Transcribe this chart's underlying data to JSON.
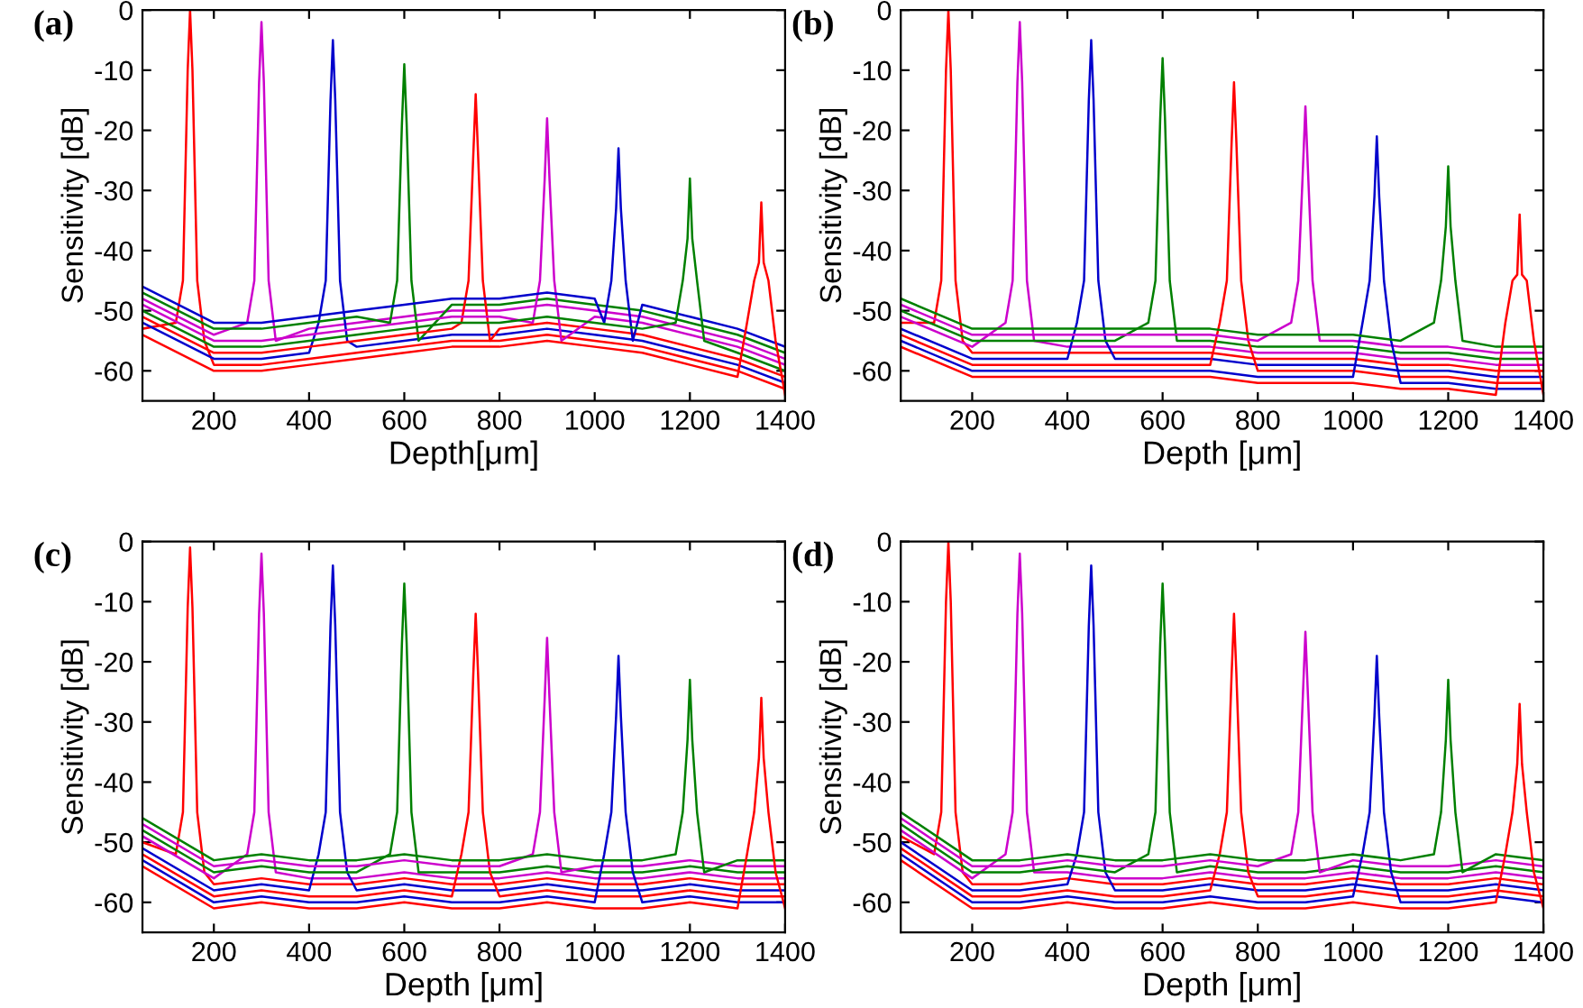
{
  "chart_data": [
    {
      "type": "line",
      "title": "(a)",
      "xlabel": "Depth[μm]",
      "ylabel": "Sensitivity [dB]",
      "xlim": [
        50,
        1400
      ],
      "xticks": [
        200,
        400,
        600,
        800,
        1000,
        1200,
        1400
      ],
      "ylim": [
        -65,
        0
      ],
      "yticks": [
        -60,
        -50,
        -40,
        -30,
        -20,
        -10,
        0
      ],
      "grid": false,
      "line_style": "solid",
      "series": [
        {
          "color": "#ff0000",
          "x": [
            50,
            120,
            135,
            145,
            150,
            155,
            165,
            180,
            200,
            300,
            400,
            500,
            600,
            700,
            800,
            900,
            1000,
            1100,
            1200,
            1300,
            1400
          ],
          "values": [
            -53,
            -52,
            -45,
            -10,
            0,
            -10,
            -45,
            -55,
            -59,
            -59,
            -58,
            -57,
            -56,
            -55,
            -55,
            -54,
            -55,
            -56,
            -58,
            -60,
            -63
          ]
        },
        {
          "color": "#cc00cc",
          "x": [
            50,
            200,
            270,
            285,
            295,
            300,
            305,
            315,
            330,
            400,
            500,
            600,
            700,
            800,
            900,
            1000,
            1100,
            1200,
            1300,
            1400
          ],
          "values": [
            -48,
            -54,
            -52,
            -45,
            -12,
            -2,
            -12,
            -45,
            -55,
            -53,
            -52,
            -51,
            -50,
            -50,
            -49,
            -50,
            -51,
            -53,
            -55,
            -58
          ]
        },
        {
          "color": "#0000cc",
          "x": [
            50,
            200,
            300,
            400,
            420,
            435,
            445,
            450,
            455,
            465,
            480,
            500,
            600,
            700,
            800,
            900,
            1000,
            1100,
            1200,
            1300,
            1400
          ],
          "values": [
            -52,
            -58,
            -58,
            -57,
            -52,
            -45,
            -15,
            -5,
            -15,
            -45,
            -55,
            -56,
            -55,
            -54,
            -54,
            -53,
            -54,
            -55,
            -57,
            -59,
            -62
          ]
        },
        {
          "color": "#008000",
          "x": [
            50,
            200,
            300,
            400,
            500,
            570,
            585,
            595,
            600,
            605,
            615,
            630,
            700,
            800,
            900,
            1000,
            1100,
            1200,
            1300,
            1400
          ],
          "values": [
            -47,
            -53,
            -53,
            -52,
            -51,
            -52,
            -45,
            -19,
            -9,
            -19,
            -45,
            -55,
            -49,
            -49,
            -48,
            -49,
            -50,
            -52,
            -54,
            -57
          ]
        },
        {
          "color": "#ff0000",
          "x": [
            50,
            200,
            300,
            400,
            500,
            600,
            700,
            720,
            735,
            745,
            750,
            755,
            765,
            780,
            800,
            900,
            1000,
            1100,
            1200,
            1300,
            1400
          ],
          "values": [
            -51,
            -57,
            -57,
            -56,
            -55,
            -54,
            -53,
            -52,
            -45,
            -24,
            -14,
            -24,
            -45,
            -55,
            -53,
            -52,
            -53,
            -54,
            -56,
            -58,
            -61
          ]
        },
        {
          "color": "#cc00cc",
          "x": [
            50,
            200,
            300,
            400,
            500,
            600,
            700,
            800,
            870,
            885,
            895,
            900,
            905,
            915,
            930,
            1000,
            1100,
            1200,
            1300,
            1400
          ],
          "values": [
            -49,
            -55,
            -55,
            -54,
            -53,
            -52,
            -51,
            -51,
            -52,
            -45,
            -28,
            -18,
            -28,
            -45,
            -55,
            -51,
            -52,
            -54,
            -56,
            -59
          ]
        },
        {
          "color": "#0000cc",
          "x": [
            50,
            200,
            300,
            400,
            500,
            600,
            700,
            800,
            900,
            1000,
            1020,
            1035,
            1045,
            1050,
            1055,
            1065,
            1080,
            1100,
            1200,
            1300,
            1400
          ],
          "values": [
            -46,
            -52,
            -52,
            -51,
            -50,
            -49,
            -48,
            -48,
            -47,
            -48,
            -52,
            -45,
            -33,
            -23,
            -33,
            -45,
            -55,
            -49,
            -51,
            -53,
            -56
          ]
        },
        {
          "color": "#008000",
          "x": [
            50,
            200,
            300,
            400,
            500,
            600,
            700,
            800,
            900,
            1000,
            1100,
            1170,
            1185,
            1195,
            1200,
            1205,
            1215,
            1230,
            1300,
            1400
          ],
          "values": [
            -50,
            -56,
            -56,
            -55,
            -54,
            -53,
            -52,
            -52,
            -51,
            -52,
            -53,
            -52,
            -45,
            -38,
            -28,
            -38,
            -45,
            -55,
            -57,
            -60
          ]
        },
        {
          "color": "#ff0000",
          "x": [
            50,
            200,
            300,
            400,
            500,
            600,
            700,
            800,
            900,
            1000,
            1100,
            1200,
            1300,
            1320,
            1335,
            1345,
            1350,
            1355,
            1365,
            1380,
            1400
          ],
          "values": [
            -54,
            -60,
            -60,
            -59,
            -58,
            -57,
            -56,
            -56,
            -55,
            -56,
            -57,
            -59,
            -61,
            -52,
            -45,
            -42,
            -32,
            -42,
            -45,
            -55,
            -64
          ]
        }
      ]
    },
    {
      "type": "line",
      "title": "(b)",
      "xlabel": "Depth [μm]",
      "ylabel": "Sensitivity [dB]",
      "xlim": [
        50,
        1400
      ],
      "xticks": [
        200,
        400,
        600,
        800,
        1000,
        1200,
        1400
      ],
      "ylim": [
        -65,
        0
      ],
      "yticks": [
        -60,
        -50,
        -40,
        -30,
        -20,
        -10,
        0
      ],
      "grid": false,
      "line_style": "solid",
      "series": [
        {
          "color": "#ff0000",
          "x": [
            50,
            120,
            135,
            145,
            150,
            155,
            165,
            180,
            200,
            300,
            400,
            500,
            600,
            700,
            800,
            900,
            1000,
            1100,
            1200,
            1300,
            1400
          ],
          "values": [
            -52,
            -52,
            -45,
            -10,
            0,
            -10,
            -45,
            -55,
            -57,
            -57,
            -57,
            -57,
            -57,
            -57,
            -58,
            -58,
            -58,
            -59,
            -59,
            -60,
            -60
          ]
        },
        {
          "color": "#cc00cc",
          "x": [
            50,
            200,
            270,
            285,
            295,
            300,
            305,
            315,
            330,
            400,
            500,
            600,
            700,
            800,
            900,
            1000,
            1100,
            1200,
            1300,
            1400
          ],
          "values": [
            -51,
            -56,
            -52,
            -45,
            -12,
            -2,
            -12,
            -45,
            -55,
            -56,
            -56,
            -56,
            -56,
            -57,
            -57,
            -57,
            -58,
            -58,
            -59,
            -59
          ]
        },
        {
          "color": "#0000cc",
          "x": [
            50,
            200,
            300,
            400,
            420,
            435,
            445,
            450,
            455,
            465,
            480,
            500,
            600,
            700,
            800,
            900,
            1000,
            1100,
            1200,
            1300,
            1400
          ],
          "values": [
            -53,
            -58,
            -58,
            -58,
            -52,
            -45,
            -15,
            -5,
            -15,
            -45,
            -55,
            -58,
            -58,
            -58,
            -59,
            -59,
            -59,
            -60,
            -60,
            -61,
            -61
          ]
        },
        {
          "color": "#008000",
          "x": [
            50,
            200,
            300,
            400,
            500,
            570,
            585,
            595,
            600,
            605,
            615,
            630,
            700,
            800,
            900,
            1000,
            1100,
            1200,
            1300,
            1400
          ],
          "values": [
            -50,
            -55,
            -55,
            -55,
            -55,
            -52,
            -45,
            -18,
            -8,
            -18,
            -45,
            -55,
            -55,
            -56,
            -56,
            -56,
            -57,
            -57,
            -58,
            -58
          ]
        },
        {
          "color": "#ff0000",
          "x": [
            50,
            200,
            300,
            400,
            500,
            600,
            700,
            720,
            735,
            745,
            750,
            755,
            765,
            780,
            800,
            900,
            1000,
            1100,
            1200,
            1300,
            1400
          ],
          "values": [
            -54,
            -59,
            -59,
            -59,
            -59,
            -59,
            -59,
            -52,
            -45,
            -22,
            -12,
            -22,
            -45,
            -55,
            -60,
            -60,
            -60,
            -61,
            -61,
            -62,
            -62
          ]
        },
        {
          "color": "#cc00cc",
          "x": [
            50,
            200,
            300,
            400,
            500,
            600,
            700,
            800,
            870,
            885,
            895,
            900,
            905,
            915,
            930,
            1000,
            1100,
            1200,
            1300,
            1400
          ],
          "values": [
            -49,
            -54,
            -54,
            -54,
            -54,
            -54,
            -54,
            -55,
            -52,
            -45,
            -26,
            -16,
            -26,
            -45,
            -55,
            -55,
            -56,
            -56,
            -57,
            -57
          ]
        },
        {
          "color": "#0000cc",
          "x": [
            50,
            200,
            300,
            400,
            500,
            600,
            700,
            800,
            900,
            1000,
            1020,
            1035,
            1045,
            1050,
            1055,
            1065,
            1080,
            1100,
            1200,
            1300,
            1400
          ],
          "values": [
            -55,
            -60,
            -60,
            -60,
            -60,
            -60,
            -60,
            -61,
            -61,
            -61,
            -52,
            -45,
            -31,
            -21,
            -31,
            -45,
            -55,
            -62,
            -62,
            -63,
            -63
          ]
        },
        {
          "color": "#008000",
          "x": [
            50,
            200,
            300,
            400,
            500,
            600,
            700,
            800,
            900,
            1000,
            1100,
            1170,
            1185,
            1195,
            1200,
            1205,
            1215,
            1230,
            1300,
            1400
          ],
          "values": [
            -48,
            -53,
            -53,
            -53,
            -53,
            -53,
            -53,
            -54,
            -54,
            -54,
            -55,
            -52,
            -45,
            -36,
            -26,
            -36,
            -45,
            -55,
            -56,
            -56
          ]
        },
        {
          "color": "#ff0000",
          "x": [
            50,
            200,
            300,
            400,
            500,
            600,
            700,
            800,
            900,
            1000,
            1100,
            1200,
            1300,
            1320,
            1335,
            1345,
            1350,
            1355,
            1365,
            1380,
            1400
          ],
          "values": [
            -56,
            -61,
            -61,
            -61,
            -61,
            -61,
            -61,
            -62,
            -62,
            -62,
            -63,
            -63,
            -64,
            -52,
            -45,
            -44,
            -34,
            -44,
            -45,
            -55,
            -64
          ]
        }
      ]
    },
    {
      "type": "line",
      "title": "(c)",
      "xlabel": "Depth [μm]",
      "ylabel": "Sensitivity [dB]",
      "xlim": [
        50,
        1400
      ],
      "xticks": [
        200,
        400,
        600,
        800,
        1000,
        1200,
        1400
      ],
      "ylim": [
        -65,
        0
      ],
      "yticks": [
        -60,
        -50,
        -40,
        -30,
        -20,
        -10,
        0
      ],
      "grid": false,
      "line_style": "solid",
      "series": [
        {
          "color": "#ff0000",
          "x": [
            50,
            120,
            135,
            145,
            150,
            155,
            165,
            180,
            200,
            300,
            400,
            500,
            600,
            700,
            800,
            900,
            1000,
            1100,
            1200,
            1300,
            1400
          ],
          "values": [
            -50,
            -52,
            -45,
            -11,
            -1,
            -11,
            -45,
            -55,
            -57,
            -56,
            -57,
            -57,
            -56,
            -57,
            -57,
            -56,
            -57,
            -57,
            -56,
            -57,
            -57
          ]
        },
        {
          "color": "#cc00cc",
          "x": [
            50,
            200,
            270,
            285,
            295,
            300,
            305,
            315,
            330,
            400,
            500,
            600,
            700,
            800,
            900,
            1000,
            1100,
            1200,
            1300,
            1400
          ],
          "values": [
            -49,
            -56,
            -52,
            -45,
            -12,
            -2,
            -12,
            -45,
            -55,
            -56,
            -56,
            -55,
            -56,
            -56,
            -55,
            -56,
            -56,
            -55,
            -56,
            -56
          ]
        },
        {
          "color": "#0000cc",
          "x": [
            50,
            200,
            300,
            400,
            420,
            435,
            445,
            450,
            455,
            465,
            480,
            500,
            600,
            700,
            800,
            900,
            1000,
            1100,
            1200,
            1300,
            1400
          ],
          "values": [
            -51,
            -58,
            -57,
            -58,
            -52,
            -45,
            -14,
            -4,
            -14,
            -45,
            -55,
            -58,
            -57,
            -58,
            -58,
            -57,
            -58,
            -58,
            -57,
            -58,
            -58
          ]
        },
        {
          "color": "#008000",
          "x": [
            50,
            200,
            300,
            400,
            500,
            570,
            585,
            595,
            600,
            605,
            615,
            630,
            700,
            800,
            900,
            1000,
            1100,
            1200,
            1300,
            1400
          ],
          "values": [
            -48,
            -55,
            -54,
            -55,
            -55,
            -52,
            -45,
            -17,
            -7,
            -17,
            -45,
            -55,
            -55,
            -55,
            -54,
            -55,
            -55,
            -54,
            -55,
            -55
          ]
        },
        {
          "color": "#ff0000",
          "x": [
            50,
            200,
            300,
            400,
            500,
            600,
            700,
            720,
            735,
            745,
            750,
            755,
            765,
            780,
            800,
            900,
            1000,
            1100,
            1200,
            1300,
            1400
          ],
          "values": [
            -52,
            -59,
            -58,
            -59,
            -59,
            -58,
            -59,
            -52,
            -45,
            -22,
            -12,
            -22,
            -45,
            -55,
            -59,
            -58,
            -59,
            -59,
            -58,
            -59,
            -59
          ]
        },
        {
          "color": "#cc00cc",
          "x": [
            50,
            200,
            300,
            400,
            500,
            600,
            700,
            800,
            870,
            885,
            895,
            900,
            905,
            915,
            930,
            1000,
            1100,
            1200,
            1300,
            1400
          ],
          "values": [
            -47,
            -54,
            -53,
            -54,
            -54,
            -53,
            -54,
            -54,
            -52,
            -45,
            -26,
            -16,
            -26,
            -45,
            -55,
            -54,
            -54,
            -53,
            -54,
            -54
          ]
        },
        {
          "color": "#0000cc",
          "x": [
            50,
            200,
            300,
            400,
            500,
            600,
            700,
            800,
            900,
            1000,
            1020,
            1035,
            1045,
            1050,
            1055,
            1065,
            1080,
            1100,
            1200,
            1300,
            1400
          ],
          "values": [
            -53,
            -60,
            -59,
            -60,
            -60,
            -59,
            -60,
            -60,
            -59,
            -60,
            -52,
            -45,
            -29,
            -19,
            -29,
            -45,
            -55,
            -60,
            -59,
            -60,
            -60
          ]
        },
        {
          "color": "#008000",
          "x": [
            50,
            200,
            300,
            400,
            500,
            600,
            700,
            800,
            900,
            1000,
            1100,
            1170,
            1185,
            1195,
            1200,
            1205,
            1215,
            1230,
            1300,
            1400
          ],
          "values": [
            -46,
            -53,
            -52,
            -53,
            -53,
            -52,
            -53,
            -53,
            -52,
            -53,
            -53,
            -52,
            -45,
            -33,
            -23,
            -33,
            -45,
            -55,
            -53,
            -53
          ]
        },
        {
          "color": "#ff0000",
          "x": [
            50,
            200,
            300,
            400,
            500,
            600,
            700,
            800,
            900,
            1000,
            1100,
            1200,
            1300,
            1320,
            1335,
            1345,
            1350,
            1355,
            1365,
            1380,
            1400
          ],
          "values": [
            -54,
            -61,
            -60,
            -61,
            -61,
            -60,
            -61,
            -61,
            -60,
            -61,
            -61,
            -60,
            -61,
            -52,
            -45,
            -36,
            -26,
            -36,
            -45,
            -55,
            -61
          ]
        }
      ]
    },
    {
      "type": "line",
      "title": "(d)",
      "xlabel": "Depth [μm]",
      "ylabel": "Sensitivity [dB]",
      "xlim": [
        50,
        1400
      ],
      "xticks": [
        200,
        400,
        600,
        800,
        1000,
        1200,
        1400
      ],
      "ylim": [
        -65,
        0
      ],
      "yticks": [
        -60,
        -50,
        -40,
        -30,
        -20,
        -10,
        0
      ],
      "grid": false,
      "line_style": "solid",
      "series": [
        {
          "color": "#ff0000",
          "x": [
            50,
            120,
            135,
            145,
            150,
            155,
            165,
            180,
            200,
            300,
            400,
            500,
            600,
            700,
            800,
            900,
            1000,
            1100,
            1200,
            1300,
            1400
          ],
          "values": [
            -49,
            -52,
            -45,
            -10,
            0,
            -10,
            -45,
            -55,
            -57,
            -57,
            -56,
            -57,
            -57,
            -56,
            -57,
            -57,
            -56,
            -57,
            -57,
            -56,
            -57
          ]
        },
        {
          "color": "#cc00cc",
          "x": [
            50,
            200,
            270,
            285,
            295,
            300,
            305,
            315,
            330,
            400,
            500,
            600,
            700,
            800,
            900,
            1000,
            1100,
            1200,
            1300,
            1400
          ],
          "values": [
            -48,
            -56,
            -52,
            -45,
            -12,
            -2,
            -12,
            -45,
            -55,
            -55,
            -56,
            -56,
            -55,
            -56,
            -56,
            -55,
            -56,
            -56,
            -55,
            -56
          ]
        },
        {
          "color": "#0000cc",
          "x": [
            50,
            200,
            300,
            400,
            420,
            435,
            445,
            450,
            455,
            465,
            480,
            500,
            600,
            700,
            800,
            900,
            1000,
            1100,
            1200,
            1300,
            1400
          ],
          "values": [
            -50,
            -58,
            -58,
            -57,
            -52,
            -45,
            -14,
            -4,
            -14,
            -45,
            -55,
            -58,
            -58,
            -57,
            -58,
            -58,
            -57,
            -58,
            -58,
            -57,
            -58
          ]
        },
        {
          "color": "#008000",
          "x": [
            50,
            200,
            300,
            400,
            500,
            570,
            585,
            595,
            600,
            605,
            615,
            630,
            700,
            800,
            900,
            1000,
            1100,
            1200,
            1300,
            1400
          ],
          "values": [
            -47,
            -55,
            -55,
            -54,
            -55,
            -52,
            -45,
            -17,
            -7,
            -17,
            -45,
            -55,
            -54,
            -55,
            -55,
            -54,
            -55,
            -55,
            -54,
            -55
          ]
        },
        {
          "color": "#ff0000",
          "x": [
            50,
            200,
            300,
            400,
            500,
            600,
            700,
            720,
            735,
            745,
            750,
            755,
            765,
            780,
            800,
            900,
            1000,
            1100,
            1200,
            1300,
            1400
          ],
          "values": [
            -51,
            -59,
            -59,
            -58,
            -59,
            -59,
            -58,
            -52,
            -45,
            -22,
            -12,
            -22,
            -45,
            -55,
            -59,
            -59,
            -58,
            -59,
            -59,
            -58,
            -59
          ]
        },
        {
          "color": "#cc00cc",
          "x": [
            50,
            200,
            300,
            400,
            500,
            600,
            700,
            800,
            870,
            885,
            895,
            900,
            905,
            915,
            930,
            1000,
            1100,
            1200,
            1300,
            1400
          ],
          "values": [
            -46,
            -54,
            -54,
            -53,
            -54,
            -54,
            -53,
            -54,
            -52,
            -45,
            -25,
            -15,
            -25,
            -45,
            -55,
            -53,
            -54,
            -54,
            -53,
            -54
          ]
        },
        {
          "color": "#0000cc",
          "x": [
            50,
            200,
            300,
            400,
            500,
            600,
            700,
            800,
            900,
            1000,
            1020,
            1035,
            1045,
            1050,
            1055,
            1065,
            1080,
            1100,
            1200,
            1300,
            1400
          ],
          "values": [
            -52,
            -60,
            -60,
            -59,
            -60,
            -60,
            -59,
            -60,
            -60,
            -59,
            -52,
            -45,
            -29,
            -19,
            -29,
            -45,
            -55,
            -60,
            -60,
            -59,
            -60
          ]
        },
        {
          "color": "#008000",
          "x": [
            50,
            200,
            300,
            400,
            500,
            600,
            700,
            800,
            900,
            1000,
            1100,
            1170,
            1185,
            1195,
            1200,
            1205,
            1215,
            1230,
            1300,
            1400
          ],
          "values": [
            -45,
            -53,
            -53,
            -52,
            -53,
            -53,
            -52,
            -53,
            -53,
            -52,
            -53,
            -52,
            -45,
            -33,
            -23,
            -33,
            -45,
            -55,
            -52,
            -53
          ]
        },
        {
          "color": "#ff0000",
          "x": [
            50,
            200,
            300,
            400,
            500,
            600,
            700,
            800,
            900,
            1000,
            1100,
            1200,
            1300,
            1320,
            1335,
            1345,
            1350,
            1355,
            1365,
            1380,
            1400
          ],
          "values": [
            -53,
            -61,
            -61,
            -60,
            -61,
            -61,
            -60,
            -61,
            -61,
            -60,
            -61,
            -61,
            -60,
            -52,
            -45,
            -37,
            -27,
            -37,
            -45,
            -55,
            -61
          ]
        }
      ]
    }
  ]
}
